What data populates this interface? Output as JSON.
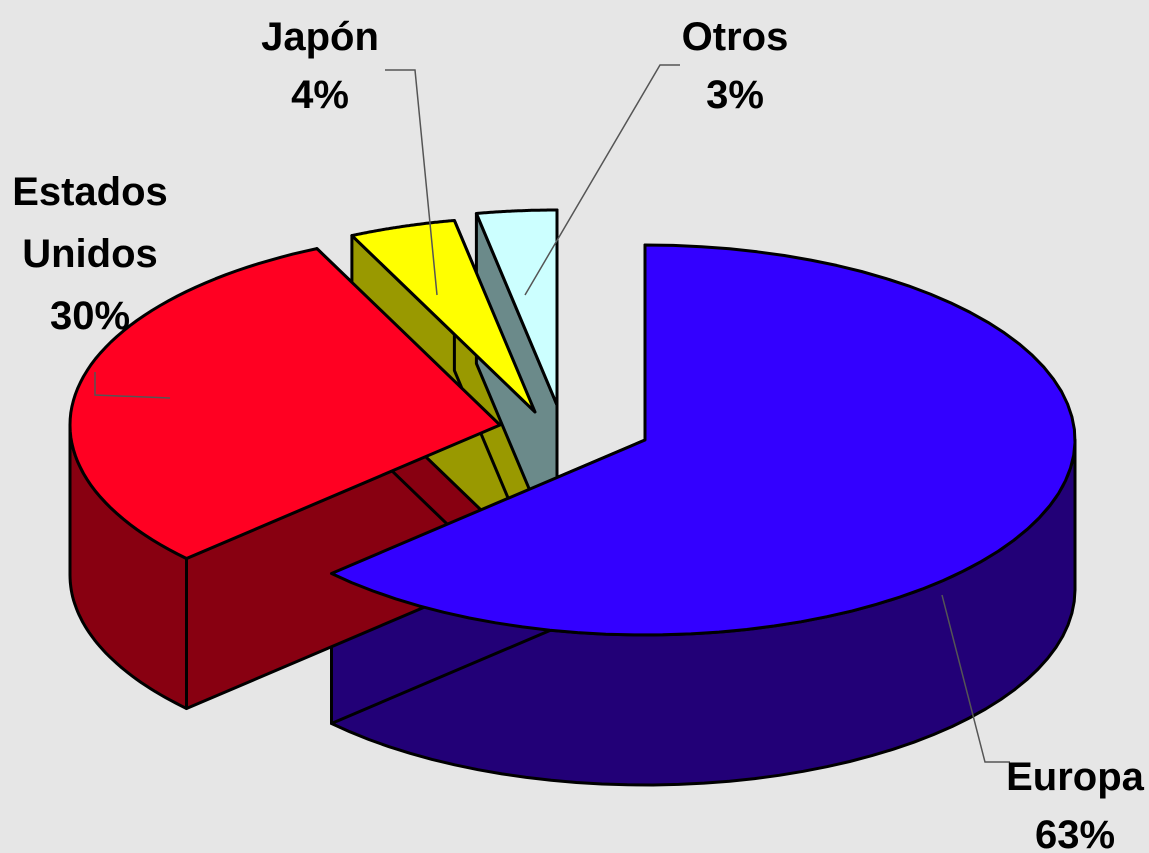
{
  "chart_data": {
    "type": "pie",
    "variant": "3d-exploded",
    "legend": "none",
    "slices": [
      {
        "name": "Europa",
        "label_lines": [
          "Europa"
        ],
        "value": 63,
        "value_label": "63%",
        "color": "#3300ff",
        "side_color": "#220077"
      },
      {
        "name": "Estados Unidos",
        "label_lines": [
          "Estados",
          "Unidos"
        ],
        "value": 30,
        "value_label": "30%",
        "color": "#ff0022",
        "side_color": "#880011"
      },
      {
        "name": "Japón",
        "label_lines": [
          "Japón"
        ],
        "value": 4,
        "value_label": "4%",
        "color": "#ffff00",
        "side_color": "#999900"
      },
      {
        "name": "Otros",
        "label_lines": [
          "Otros"
        ],
        "value": 3,
        "value_label": "3%",
        "color": "#ccffff",
        "side_color": "#6b8a8a"
      }
    ]
  }
}
